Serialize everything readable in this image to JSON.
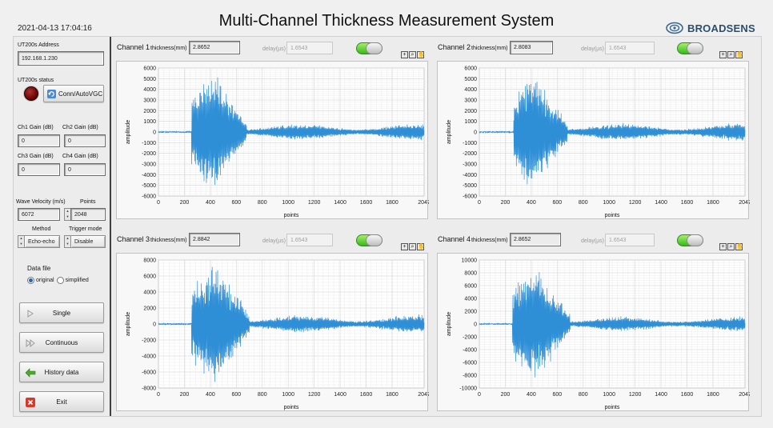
{
  "header": {
    "datetime": "2021-04-13 17:04:16",
    "title": "Multi-Channel  Thickness Measurement System",
    "logo_text": "BROADSENS"
  },
  "left_panel": {
    "address_label": "UT200s Address",
    "address_value": "192.168.1.230",
    "status_label": "UT200s status",
    "conn_button_label": "Conn/AutoVGC",
    "gains": [
      {
        "label": "Ch1 Gain  (dB)",
        "value": "0"
      },
      {
        "label": "Ch2 Gain   (dB)",
        "value": "0"
      },
      {
        "label": "Ch3 Gain  (dB)",
        "value": "0"
      },
      {
        "label": "Ch4 Gain  (dB)",
        "value": "0"
      }
    ],
    "wave_velocity_label": "Wave Velocity (m/s)",
    "wave_velocity_value": "6072",
    "points_label": "Points",
    "points_value": "2048",
    "method_label": "Method",
    "method_value": "Echo-echo",
    "trigger_label": "Trigger mode",
    "trigger_value": "Disable",
    "data_file_label": "Data file",
    "radio_original": "original",
    "radio_simplified": "simplified",
    "selected_radio": "original",
    "buttons": {
      "single": "Single",
      "continuous": "Continuous",
      "history": "History data",
      "exit": "Exit"
    }
  },
  "channel_common": {
    "thickness_label": "thickness(mm)",
    "delay_label": "delay(µs)",
    "xlabel": "points",
    "ylabel": "amplitude",
    "accent_color": "#2f8fd6",
    "toggle_on_color": "#4cc42a"
  },
  "channels": [
    {
      "name": "Channel 1",
      "thickness": "2.8652",
      "delay": "1.6543"
    },
    {
      "name": "Channel 2",
      "thickness": "2.8083",
      "delay": "1.6543"
    },
    {
      "name": "Channel 3",
      "thickness": "2.8842",
      "delay": "1.6543"
    },
    {
      "name": "Channel 4",
      "thickness": "2.8652",
      "delay": "1.6543"
    }
  ],
  "chart_data": [
    {
      "type": "line",
      "xlim": [
        0,
        2047
      ],
      "ylim": [
        -6000,
        6000
      ],
      "xticks": [
        "0",
        "200",
        "400",
        "600",
        "800",
        "1000",
        "1200",
        "1400",
        "1600",
        "1800",
        "2047"
      ],
      "yticks": [
        "6000",
        "5000",
        "4000",
        "3000",
        "2000",
        "1000",
        "0",
        "-1000",
        "-2000",
        "-3000",
        "-4000",
        "-5000",
        "-6000"
      ],
      "xlabel": "points",
      "ylabel": "amplitude",
      "grid": true,
      "series": [
        {
          "burst_start": 255,
          "peak": 5400,
          "peak_at": 420,
          "decay_end": 680,
          "tail_level": 600,
          "onset_x": [
            0,
            255
          ],
          "x_end": 2047
        }
      ]
    },
    {
      "type": "line",
      "xlim": [
        0,
        2047
      ],
      "ylim": [
        -6000,
        6000
      ],
      "xticks": [
        "0",
        "200",
        "400",
        "600",
        "800",
        "1000",
        "1200",
        "1400",
        "1600",
        "1800",
        "2047"
      ],
      "yticks": [
        "6000",
        "5000",
        "4000",
        "3000",
        "2000",
        "1000",
        "0",
        "-1000",
        "-2000",
        "-3000",
        "-4000",
        "-5000",
        "-6000"
      ],
      "xlabel": "points",
      "ylabel": "amplitude",
      "grid": true,
      "series": [
        {
          "burst_start": 265,
          "peak": 5500,
          "peak_at": 400,
          "decay_end": 680,
          "tail_level": 650,
          "onset_x": [
            0,
            265
          ],
          "x_end": 2047
        }
      ]
    },
    {
      "type": "line",
      "xlim": [
        0,
        2047
      ],
      "ylim": [
        -8000,
        8000
      ],
      "xticks": [
        "0",
        "200",
        "400",
        "600",
        "800",
        "1000",
        "1200",
        "1400",
        "1600",
        "1800",
        "2047"
      ],
      "yticks": [
        "8000",
        "6000",
        "4000",
        "2000",
        "0",
        "-2000",
        "-4000",
        "-6000",
        "-8000"
      ],
      "xlabel": "points",
      "ylabel": "amplitude",
      "grid": true,
      "series": [
        {
          "burst_start": 255,
          "peak": 7700,
          "peak_at": 440,
          "decay_end": 700,
          "tail_level": 900,
          "onset_x": [
            0,
            255
          ],
          "x_end": 2047
        }
      ]
    },
    {
      "type": "line",
      "xlim": [
        0,
        2047
      ],
      "ylim": [
        -10000,
        10000
      ],
      "xticks": [
        "0",
        "200",
        "400",
        "600",
        "800",
        "1000",
        "1200",
        "1400",
        "1600",
        "1800",
        "2047"
      ],
      "yticks": [
        "10000",
        "8000",
        "6000",
        "4000",
        "2000",
        "0",
        "-2000",
        "-4000",
        "-6000",
        "-8000",
        "-10000"
      ],
      "xlabel": "points",
      "ylabel": "amplitude",
      "grid": true,
      "series": [
        {
          "burst_start": 255,
          "peak": 9000,
          "peak_at": 420,
          "decay_end": 700,
          "tail_level": 900,
          "onset_x": [
            0,
            255
          ],
          "x_end": 2047
        }
      ]
    }
  ]
}
